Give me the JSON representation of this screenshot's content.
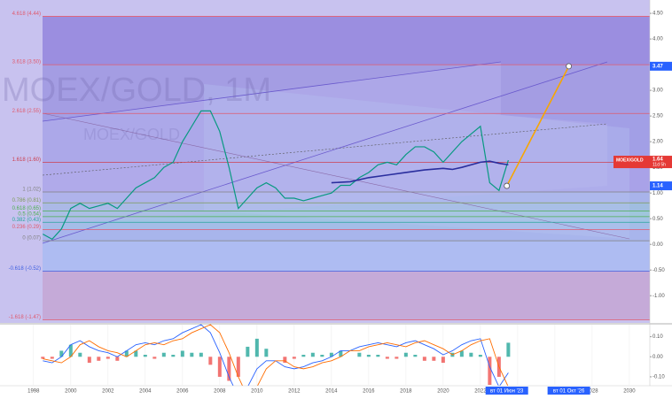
{
  "chart_data": [
    {
      "type": "line",
      "watermark": "MOEX/GOLD, 1M",
      "countdown": "11d 5h",
      "background": "#c8c2ef",
      "xlim": [
        1996.2,
        2031.1
      ],
      "xticks": [
        1998,
        2000,
        2002,
        2004,
        2006,
        2008,
        2010,
        2012,
        2014,
        2016,
        2018,
        2020,
        2022,
        2024,
        2026,
        2028,
        2030
      ],
      "ylim": [
        -1.53,
        4.76
      ],
      "yticks": [
        {
          "value": 4.5,
          "label": "4.50"
        },
        {
          "value": 4,
          "label": "4.00"
        },
        {
          "value": 3.5,
          "label": "3.50"
        },
        {
          "value": 3,
          "label": "3.00"
        },
        {
          "value": 2.5,
          "label": "2.50"
        },
        {
          "value": 2,
          "label": "2.00"
        },
        {
          "value": 1.5,
          "label": "1.50"
        },
        {
          "value": 1,
          "label": "1.00"
        },
        {
          "value": 0.5,
          "label": "0.50"
        },
        {
          "value": 0,
          "label": "0.00"
        },
        {
          "value": -0.5,
          "label": "-0.50"
        },
        {
          "value": -1,
          "label": "-1.00"
        }
      ],
      "fib_levels": [
        {
          "label": "4.618 (4.44)",
          "value": 4.44,
          "color": "#e05a6e",
          "fill": "#9b8ee0"
        },
        {
          "label": "3.618 (3.50)",
          "value": 3.5,
          "color": "#e05a6e",
          "fill": "#a49de3"
        },
        {
          "label": "2.618 (2.55)",
          "value": 2.55,
          "color": "#e05a6e",
          "fill": "#a29fe6"
        },
        {
          "label": "1.618 (1.60)",
          "value": 1.6,
          "color": "#cc3f4f",
          "fill": "#a9a2e8"
        },
        {
          "label": "1 (1.02)",
          "value": 1.02,
          "color": "#808080",
          "fill": "#a8b3ea"
        },
        {
          "label": "0.786 (0.81)",
          "value": 0.81,
          "color": "#7e9a5a",
          "fill": "#a0bde0"
        },
        {
          "label": "0.618 (0.65)",
          "value": 0.65,
          "color": "#4caf50",
          "fill": "#9fc6dc"
        },
        {
          "label": "0.5 (0.54)",
          "value": 0.54,
          "color": "#4caf50",
          "fill": "#a2c3e4"
        },
        {
          "label": "0.382 (0.43)",
          "value": 0.43,
          "color": "#26a69a",
          "fill": "#a4bde8"
        },
        {
          "label": "0.236 (0.29)",
          "value": 0.29,
          "color": "#e05a6e",
          "fill": "#a8b5ec"
        },
        {
          "label": "0 (0.07)",
          "value": 0.07,
          "color": "#808080",
          "fill": "#aebcf2"
        },
        {
          "label": "-0.618 (-0.52)",
          "value": -0.52,
          "color": "#3f5fe0",
          "fill": "#c5aad8"
        },
        {
          "label": "-1.618 (-1.47)",
          "value": -1.47,
          "color": "#e05a6e"
        }
      ],
      "x_badges": [
        {
          "label": "вт 01 Июн '23",
          "value": 2023.42
        },
        {
          "label": "вт 01 Окт '26",
          "value": 2026.75
        }
      ],
      "series": [
        {
          "name": "MOEX/GOLD",
          "color": "#089981",
          "x": [
            1998.5,
            1999,
            1999.5,
            2000,
            2000.5,
            2001,
            2001.5,
            2002,
            2002.5,
            2003,
            2003.5,
            2004,
            2004.5,
            2005,
            2005.5,
            2006,
            2006.5,
            2007,
            2007.5,
            2008,
            2008.5,
            2009,
            2009.5,
            2010,
            2010.5,
            2011,
            2011.5,
            2012,
            2012.5,
            2013,
            2013.5,
            2014,
            2014.5,
            2015,
            2015.5,
            2016,
            2016.5,
            2017,
            2017.5,
            2018,
            2018.5,
            2019,
            2019.5,
            2020,
            2020.5,
            2021,
            2021.5,
            2022,
            2022.5,
            2023,
            2023.5
          ],
          "values": [
            0.2,
            0.1,
            0.3,
            0.7,
            0.8,
            0.7,
            0.75,
            0.8,
            0.7,
            0.9,
            1.1,
            1.2,
            1.3,
            1.5,
            1.6,
            2.0,
            2.3,
            2.6,
            2.6,
            2.2,
            1.5,
            0.7,
            0.9,
            1.1,
            1.2,
            1.1,
            0.9,
            0.9,
            0.85,
            0.9,
            0.95,
            1.0,
            1.15,
            1.15,
            1.3,
            1.4,
            1.55,
            1.6,
            1.55,
            1.75,
            1.9,
            1.9,
            1.8,
            1.6,
            1.8,
            2.0,
            2.15,
            2.3,
            1.2,
            1.05,
            1.64
          ]
        },
        {
          "color": "#2a2e9e",
          "x": [
            2014,
            2015,
            2016,
            2017,
            2018,
            2019,
            2020,
            2020.5,
            2021,
            2022,
            2022.5,
            2023,
            2023.5
          ],
          "values": [
            1.2,
            1.22,
            1.3,
            1.35,
            1.4,
            1.45,
            1.48,
            1.46,
            1.5,
            1.6,
            1.62,
            1.58,
            1.55
          ]
        },
        {
          "color": "#f7a600",
          "x": [
            2023.42,
            2026.75
          ],
          "values": [
            1.14,
            3.47
          ]
        }
      ]
    },
    {
      "type": "macd",
      "ylim": [
        -0.14,
        0.16
      ],
      "yticks": [
        {
          "value": 0.1,
          "label": "0.10"
        },
        {
          "value": 0,
          "label": "0.00"
        },
        {
          "value": -0.1,
          "label": "-0.10"
        }
      ],
      "x": [
        1998.5,
        1999,
        1999.5,
        2000,
        2000.5,
        2001,
        2001.5,
        2002,
        2002.5,
        2003,
        2003.5,
        2004,
        2004.5,
        2005,
        2005.5,
        2006,
        2006.5,
        2007,
        2007.5,
        2008,
        2008.5,
        2009,
        2009.5,
        2010,
        2010.5,
        2011,
        2011.5,
        2012,
        2012.5,
        2013,
        2013.5,
        2014,
        2014.5,
        2015,
        2015.5,
        2016,
        2016.5,
        2017,
        2017.5,
        2018,
        2018.5,
        2019,
        2019.5,
        2020,
        2020.5,
        2021,
        2021.5,
        2022,
        2022.5,
        2023,
        2023.5
      ],
      "series": [
        {
          "color": "#2962ff",
          "values": [
            -0.02,
            -0.03,
            0.0,
            0.06,
            0.08,
            0.05,
            0.03,
            0.02,
            0.0,
            0.03,
            0.06,
            0.07,
            0.06,
            0.08,
            0.09,
            0.12,
            0.14,
            0.16,
            0.12,
            0.02,
            -0.1,
            -0.2,
            -0.15,
            -0.06,
            -0.02,
            -0.02,
            -0.05,
            -0.06,
            -0.05,
            -0.03,
            -0.02,
            0.0,
            0.03,
            0.03,
            0.05,
            0.06,
            0.07,
            0.06,
            0.05,
            0.07,
            0.08,
            0.06,
            0.04,
            0.01,
            0.03,
            0.06,
            0.08,
            0.09,
            -0.05,
            -0.15,
            -0.08
          ]
        },
        {
          "color": "#ff6d00",
          "values": [
            -0.01,
            -0.02,
            -0.03,
            0.0,
            0.06,
            0.08,
            0.05,
            0.03,
            0.02,
            0.0,
            0.03,
            0.06,
            0.07,
            0.06,
            0.08,
            0.09,
            0.12,
            0.14,
            0.16,
            0.12,
            0.02,
            -0.1,
            -0.2,
            -0.15,
            -0.06,
            -0.02,
            -0.02,
            -0.05,
            -0.06,
            -0.05,
            -0.03,
            -0.02,
            0.0,
            0.03,
            0.03,
            0.05,
            0.06,
            0.07,
            0.06,
            0.05,
            0.07,
            0.08,
            0.06,
            0.04,
            0.01,
            0.03,
            0.06,
            0.08,
            0.09,
            -0.05,
            -0.15
          ]
        },
        {
          "color": "#26a69a",
          "values": [
            -0.01,
            -0.01,
            0.03,
            0.06,
            0.02,
            -0.03,
            -0.02,
            -0.01,
            -0.02,
            0.03,
            0.03,
            0.01,
            -0.01,
            0.02,
            0.01,
            0.03,
            0.02,
            0.02,
            -0.04,
            -0.1,
            -0.12,
            -0.1,
            0.05,
            0.09,
            0.04,
            0,
            -0.03,
            -0.01,
            0.01,
            0.02,
            0.01,
            0.02,
            0.03,
            0,
            0.02,
            0.01,
            0.01,
            -0.01,
            -0.01,
            0.02,
            0.01,
            -0.02,
            -0.02,
            -0.03,
            0.02,
            0.03,
            0.02,
            0.01,
            -0.14,
            -0.1,
            0.07
          ]
        }
      ]
    }
  ]
}
